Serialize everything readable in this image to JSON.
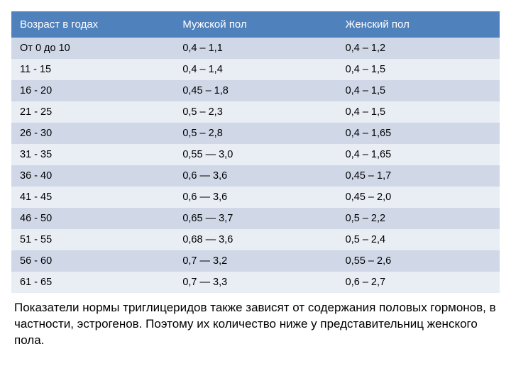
{
  "table": {
    "type": "table",
    "header_bg_color": "#4f81bd",
    "header_text_color": "#ffffff",
    "row_colors_alt": [
      "#d0d8e8",
      "#e9edf4"
    ],
    "row_text_color": "#000000",
    "header_fontsize": 15,
    "cell_fontsize": 14.5,
    "columns": [
      "Возраст в годах",
      "Мужской пол",
      "Женский пол"
    ],
    "column_widths_pct": [
      33.3,
      33.3,
      33.3
    ],
    "rows": [
      [
        "От 0 до 10",
        "0,4 – 1,1",
        "0,4 – 1,2"
      ],
      [
        "11 - 15",
        "0,4 – 1,4",
        "0,4 – 1,5"
      ],
      [
        "16 - 20",
        "0,45 – 1,8",
        "0,4 – 1,5"
      ],
      [
        "21 - 25",
        "0,5 – 2,3",
        "0,4 – 1,5"
      ],
      [
        "26 - 30",
        "0,5 – 2,8",
        "0,4 – 1,65"
      ],
      [
        "31 - 35",
        "0,55 — 3,0",
        "0,4 – 1,65"
      ],
      [
        "36 - 40",
        "0,6 — 3,6",
        "0,45 – 1,7"
      ],
      [
        "41 - 45",
        "0,6 — 3,6",
        "0,45 – 2,0"
      ],
      [
        "46 - 50",
        "0,65 — 3,7",
        "0,5 – 2,2"
      ],
      [
        "51 - 55",
        "0,68 — 3,6",
        "0,5 – 2,4"
      ],
      [
        "56 - 60",
        "0,7 — 3,2",
        "0,55 – 2,6"
      ],
      [
        "61 - 65",
        "0,7 — 3,3",
        "0,6 – 2,7"
      ]
    ]
  },
  "caption": {
    "text": "Показатели нормы триглицеридов также зависят от содержания половых гормонов, в частности, эстрогенов. Поэтому их количество ниже у представительниц женского пола.",
    "fontsize": 17,
    "text_color": "#000000"
  },
  "background_color": "#ffffff"
}
